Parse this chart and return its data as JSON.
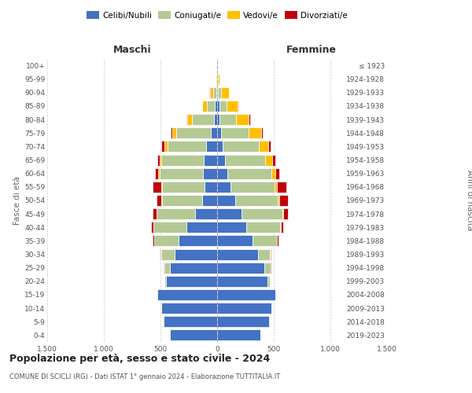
{
  "age_groups": [
    "0-4",
    "5-9",
    "10-14",
    "15-19",
    "20-24",
    "25-29",
    "30-34",
    "35-39",
    "40-44",
    "45-49",
    "50-54",
    "55-59",
    "60-64",
    "65-69",
    "70-74",
    "75-79",
    "80-84",
    "85-89",
    "90-94",
    "95-99",
    "100+"
  ],
  "birth_years": [
    "2019-2023",
    "2014-2018",
    "2009-2013",
    "2004-2008",
    "1999-2003",
    "1994-1998",
    "1989-1993",
    "1984-1988",
    "1979-1983",
    "1974-1978",
    "1969-1973",
    "1964-1968",
    "1959-1963",
    "1954-1958",
    "1949-1953",
    "1944-1948",
    "1939-1943",
    "1934-1938",
    "1929-1933",
    "1924-1928",
    "≤ 1923"
  ],
  "male": {
    "celibi": [
      420,
      475,
      490,
      530,
      450,
      420,
      375,
      340,
      270,
      195,
      130,
      110,
      125,
      115,
      95,
      55,
      30,
      18,
      8,
      3,
      2
    ],
    "coniugati": [
      2,
      2,
      2,
      3,
      15,
      45,
      120,
      215,
      290,
      340,
      355,
      375,
      385,
      375,
      345,
      305,
      195,
      75,
      28,
      5,
      2
    ],
    "vedovi": [
      1,
      1,
      1,
      1,
      1,
      1,
      2,
      2,
      3,
      3,
      5,
      5,
      8,
      18,
      28,
      38,
      38,
      38,
      28,
      5,
      1
    ],
    "divorziati": [
      1,
      1,
      1,
      1,
      2,
      4,
      8,
      14,
      18,
      28,
      48,
      78,
      28,
      22,
      22,
      14,
      8,
      4,
      2,
      0,
      0
    ]
  },
  "female": {
    "celibi": [
      380,
      460,
      480,
      515,
      445,
      415,
      360,
      310,
      258,
      218,
      158,
      118,
      88,
      68,
      52,
      32,
      22,
      18,
      8,
      4,
      2
    ],
    "coniugati": [
      2,
      2,
      2,
      5,
      18,
      55,
      108,
      215,
      298,
      358,
      378,
      388,
      388,
      358,
      318,
      248,
      148,
      68,
      28,
      5,
      2
    ],
    "vedovi": [
      1,
      1,
      1,
      1,
      1,
      2,
      3,
      4,
      7,
      9,
      14,
      24,
      38,
      58,
      78,
      108,
      108,
      98,
      68,
      10,
      2
    ],
    "divorziati": [
      1,
      1,
      1,
      1,
      2,
      4,
      8,
      14,
      23,
      38,
      78,
      78,
      33,
      28,
      23,
      18,
      13,
      4,
      2,
      0,
      0
    ]
  },
  "colors": {
    "celibi": "#4472c4",
    "coniugati": "#b5c994",
    "vedovi": "#ffc000",
    "divorziati": "#c0000b"
  },
  "title": "Popolazione per età, sesso e stato civile - 2024",
  "subtitle": "COMUNE DI SCICLI (RG) - Dati ISTAT 1° gennaio 2024 - Elaborazione TUTTITALIA.IT",
  "ylabel_left": "Fasce di età",
  "ylabel_right": "Anni di nascita",
  "xlabel_left": "Maschi",
  "xlabel_right": "Femmine",
  "xlim": 1500,
  "bg_color": "#ffffff",
  "grid_color": "#cccccc",
  "legend_labels": [
    "Celibi/Nubili",
    "Coniugati/e",
    "Vedovi/e",
    "Divorziati/e"
  ]
}
